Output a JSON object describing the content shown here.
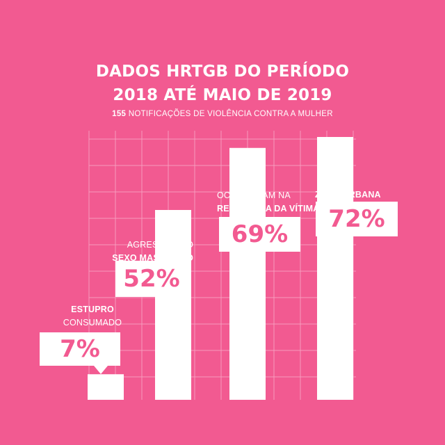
{
  "title": {
    "line1": "DADOS HRTGB DO PERÍODO",
    "line2": "2018 ATÉ MAIO DE 2019"
  },
  "subtitle": {
    "count": "155",
    "text": "NOTIFICAÇÕES DE VIOLÊNCIA CONTRA A MULHER"
  },
  "colors": {
    "background": "#f25a91",
    "bars": "#ffffff",
    "grid": "#f79bbd"
  },
  "chart_data": {
    "type": "bar",
    "grid": true,
    "ylim": [
      0,
      100
    ],
    "categories": [
      {
        "line1": "ESTUPRO",
        "line2": "CONSUMADO",
        "bold_line": 1
      },
      {
        "line1": "AGRESSOR DO",
        "line2": "SEXO MASCULINO",
        "bold_line": 2
      },
      {
        "line1": "OCORRERAM NA",
        "line2": "RESIDÊNCIA DA VÍTIMA",
        "bold_line": 2
      },
      {
        "line1": "ZONA URBANA",
        "line2": "",
        "bold_line": 1
      }
    ],
    "values": [
      7,
      52,
      69,
      72
    ],
    "value_labels": [
      "7%",
      "52%",
      "69%",
      "72%"
    ]
  }
}
